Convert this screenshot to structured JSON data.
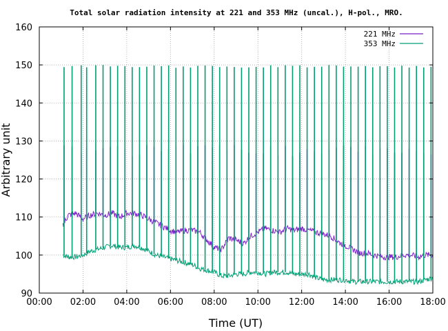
{
  "chart_data": {
    "type": "line",
    "title": "Total solar radiation intensity at 221 and 353 MHz (uncal.), H-pol., MRO.",
    "xlabel": "Time (UT)",
    "ylabel": "Arbitrary unit",
    "xlim": [
      "00:00",
      "18:00"
    ],
    "ylim": [
      90,
      160
    ],
    "xticks": [
      "00:00",
      "02:00",
      "04:00",
      "06:00",
      "08:00",
      "10:00",
      "12:00",
      "14:00",
      "16:00",
      "18:00"
    ],
    "yticks": [
      "90",
      "100",
      "110",
      "120",
      "130",
      "140",
      "150",
      "160"
    ],
    "grid": true,
    "legend_position": "top-right",
    "series": [
      {
        "name": "221 MHz",
        "color": "#7b1fc8",
        "points": [
          [
            "01:05",
            108
          ],
          [
            "01:20",
            110.5
          ],
          [
            "01:40",
            111
          ],
          [
            "02:00",
            109.5
          ],
          [
            "02:20",
            110.5
          ],
          [
            "02:40",
            111
          ],
          [
            "03:00",
            110.5
          ],
          [
            "03:20",
            111
          ],
          [
            "03:40",
            110
          ],
          [
            "04:00",
            111
          ],
          [
            "04:20",
            111
          ],
          [
            "04:40",
            110.5
          ],
          [
            "05:00",
            109.5
          ],
          [
            "05:20",
            108.5
          ],
          [
            "05:40",
            107.5
          ],
          [
            "06:00",
            106.5
          ],
          [
            "06:20",
            106
          ],
          [
            "06:40",
            106.5
          ],
          [
            "07:00",
            106.5
          ],
          [
            "07:20",
            106
          ],
          [
            "07:40",
            104
          ],
          [
            "08:00",
            102
          ],
          [
            "08:20",
            101.5
          ],
          [
            "08:40",
            104.5
          ],
          [
            "09:00",
            104
          ],
          [
            "09:20",
            103
          ],
          [
            "09:40",
            105
          ],
          [
            "10:00",
            106
          ],
          [
            "10:20",
            107
          ],
          [
            "10:40",
            106.5
          ],
          [
            "11:00",
            106
          ],
          [
            "11:20",
            107
          ],
          [
            "11:40",
            106.5
          ],
          [
            "12:00",
            107
          ],
          [
            "12:20",
            106.5
          ],
          [
            "12:40",
            106
          ],
          [
            "13:00",
            105.5
          ],
          [
            "13:20",
            105
          ],
          [
            "13:40",
            103.5
          ],
          [
            "14:00",
            102.5
          ],
          [
            "14:20",
            101.5
          ],
          [
            "14:40",
            100.5
          ],
          [
            "15:00",
            100.5
          ],
          [
            "15:20",
            100
          ],
          [
            "15:40",
            99.5
          ],
          [
            "16:00",
            99.5
          ],
          [
            "16:20",
            99.5
          ],
          [
            "16:40",
            100
          ],
          [
            "17:00",
            100
          ],
          [
            "17:20",
            99.5
          ],
          [
            "17:40",
            100
          ],
          [
            "18:00",
            100
          ]
        ]
      },
      {
        "name": "353 MHz",
        "color": "#009e73",
        "points": [
          [
            "01:05",
            100
          ],
          [
            "01:20",
            99.5
          ],
          [
            "01:40",
            99.5
          ],
          [
            "02:00",
            100
          ],
          [
            "02:20",
            101
          ],
          [
            "02:40",
            101.5
          ],
          [
            "03:00",
            102
          ],
          [
            "03:20",
            102.5
          ],
          [
            "03:40",
            102
          ],
          [
            "04:00",
            102
          ],
          [
            "04:20",
            102.5
          ],
          [
            "04:40",
            102
          ],
          [
            "05:00",
            101
          ],
          [
            "05:20",
            100
          ],
          [
            "05:40",
            99.5
          ],
          [
            "06:00",
            99
          ],
          [
            "06:20",
            98.5
          ],
          [
            "06:40",
            98
          ],
          [
            "07:00",
            97.5
          ],
          [
            "07:20",
            96.5
          ],
          [
            "07:40",
            96
          ],
          [
            "08:00",
            95.5
          ],
          [
            "08:20",
            94.5
          ],
          [
            "08:40",
            94.5
          ],
          [
            "09:00",
            95
          ],
          [
            "09:20",
            95
          ],
          [
            "09:40",
            95.5
          ],
          [
            "10:00",
            95.5
          ],
          [
            "10:20",
            95
          ],
          [
            "10:40",
            95.5
          ],
          [
            "11:00",
            95.5
          ],
          [
            "11:20",
            95.5
          ],
          [
            "11:40",
            95
          ],
          [
            "12:00",
            95
          ],
          [
            "12:20",
            95
          ],
          [
            "12:40",
            94
          ],
          [
            "13:00",
            93.5
          ],
          [
            "13:20",
            93.5
          ],
          [
            "13:40",
            93.5
          ],
          [
            "14:00",
            93.5
          ],
          [
            "14:20",
            93
          ],
          [
            "14:40",
            93
          ],
          [
            "15:00",
            93
          ],
          [
            "15:20",
            93
          ],
          [
            "15:40",
            93
          ],
          [
            "16:00",
            93
          ],
          [
            "16:20",
            93
          ],
          [
            "16:40",
            93
          ],
          [
            "17:00",
            93
          ],
          [
            "17:20",
            93
          ],
          [
            "17:40",
            93.5
          ],
          [
            "18:00",
            94
          ]
        ]
      }
    ],
    "calibration_spikes": {
      "times": [
        "01:08",
        "01:30",
        "01:55",
        "02:10",
        "02:35",
        "02:55",
        "03:15",
        "03:35",
        "03:55",
        "04:15",
        "04:35",
        "04:55",
        "05:15",
        "05:35",
        "05:55",
        "06:15",
        "06:35",
        "06:55",
        "07:15",
        "07:35",
        "07:55",
        "08:15",
        "08:35",
        "08:55",
        "09:15",
        "09:35",
        "09:55",
        "10:15",
        "10:35",
        "10:55",
        "11:15",
        "11:35",
        "11:55",
        "12:15",
        "12:35",
        "12:55",
        "13:15",
        "13:35",
        "13:55",
        "14:15",
        "14:35",
        "14:55",
        "15:15",
        "15:35",
        "15:55",
        "16:15",
        "16:35",
        "16:55",
        "17:15",
        "17:35",
        "17:55"
      ],
      "peak_353": 150,
      "peak_221": 129
    }
  }
}
